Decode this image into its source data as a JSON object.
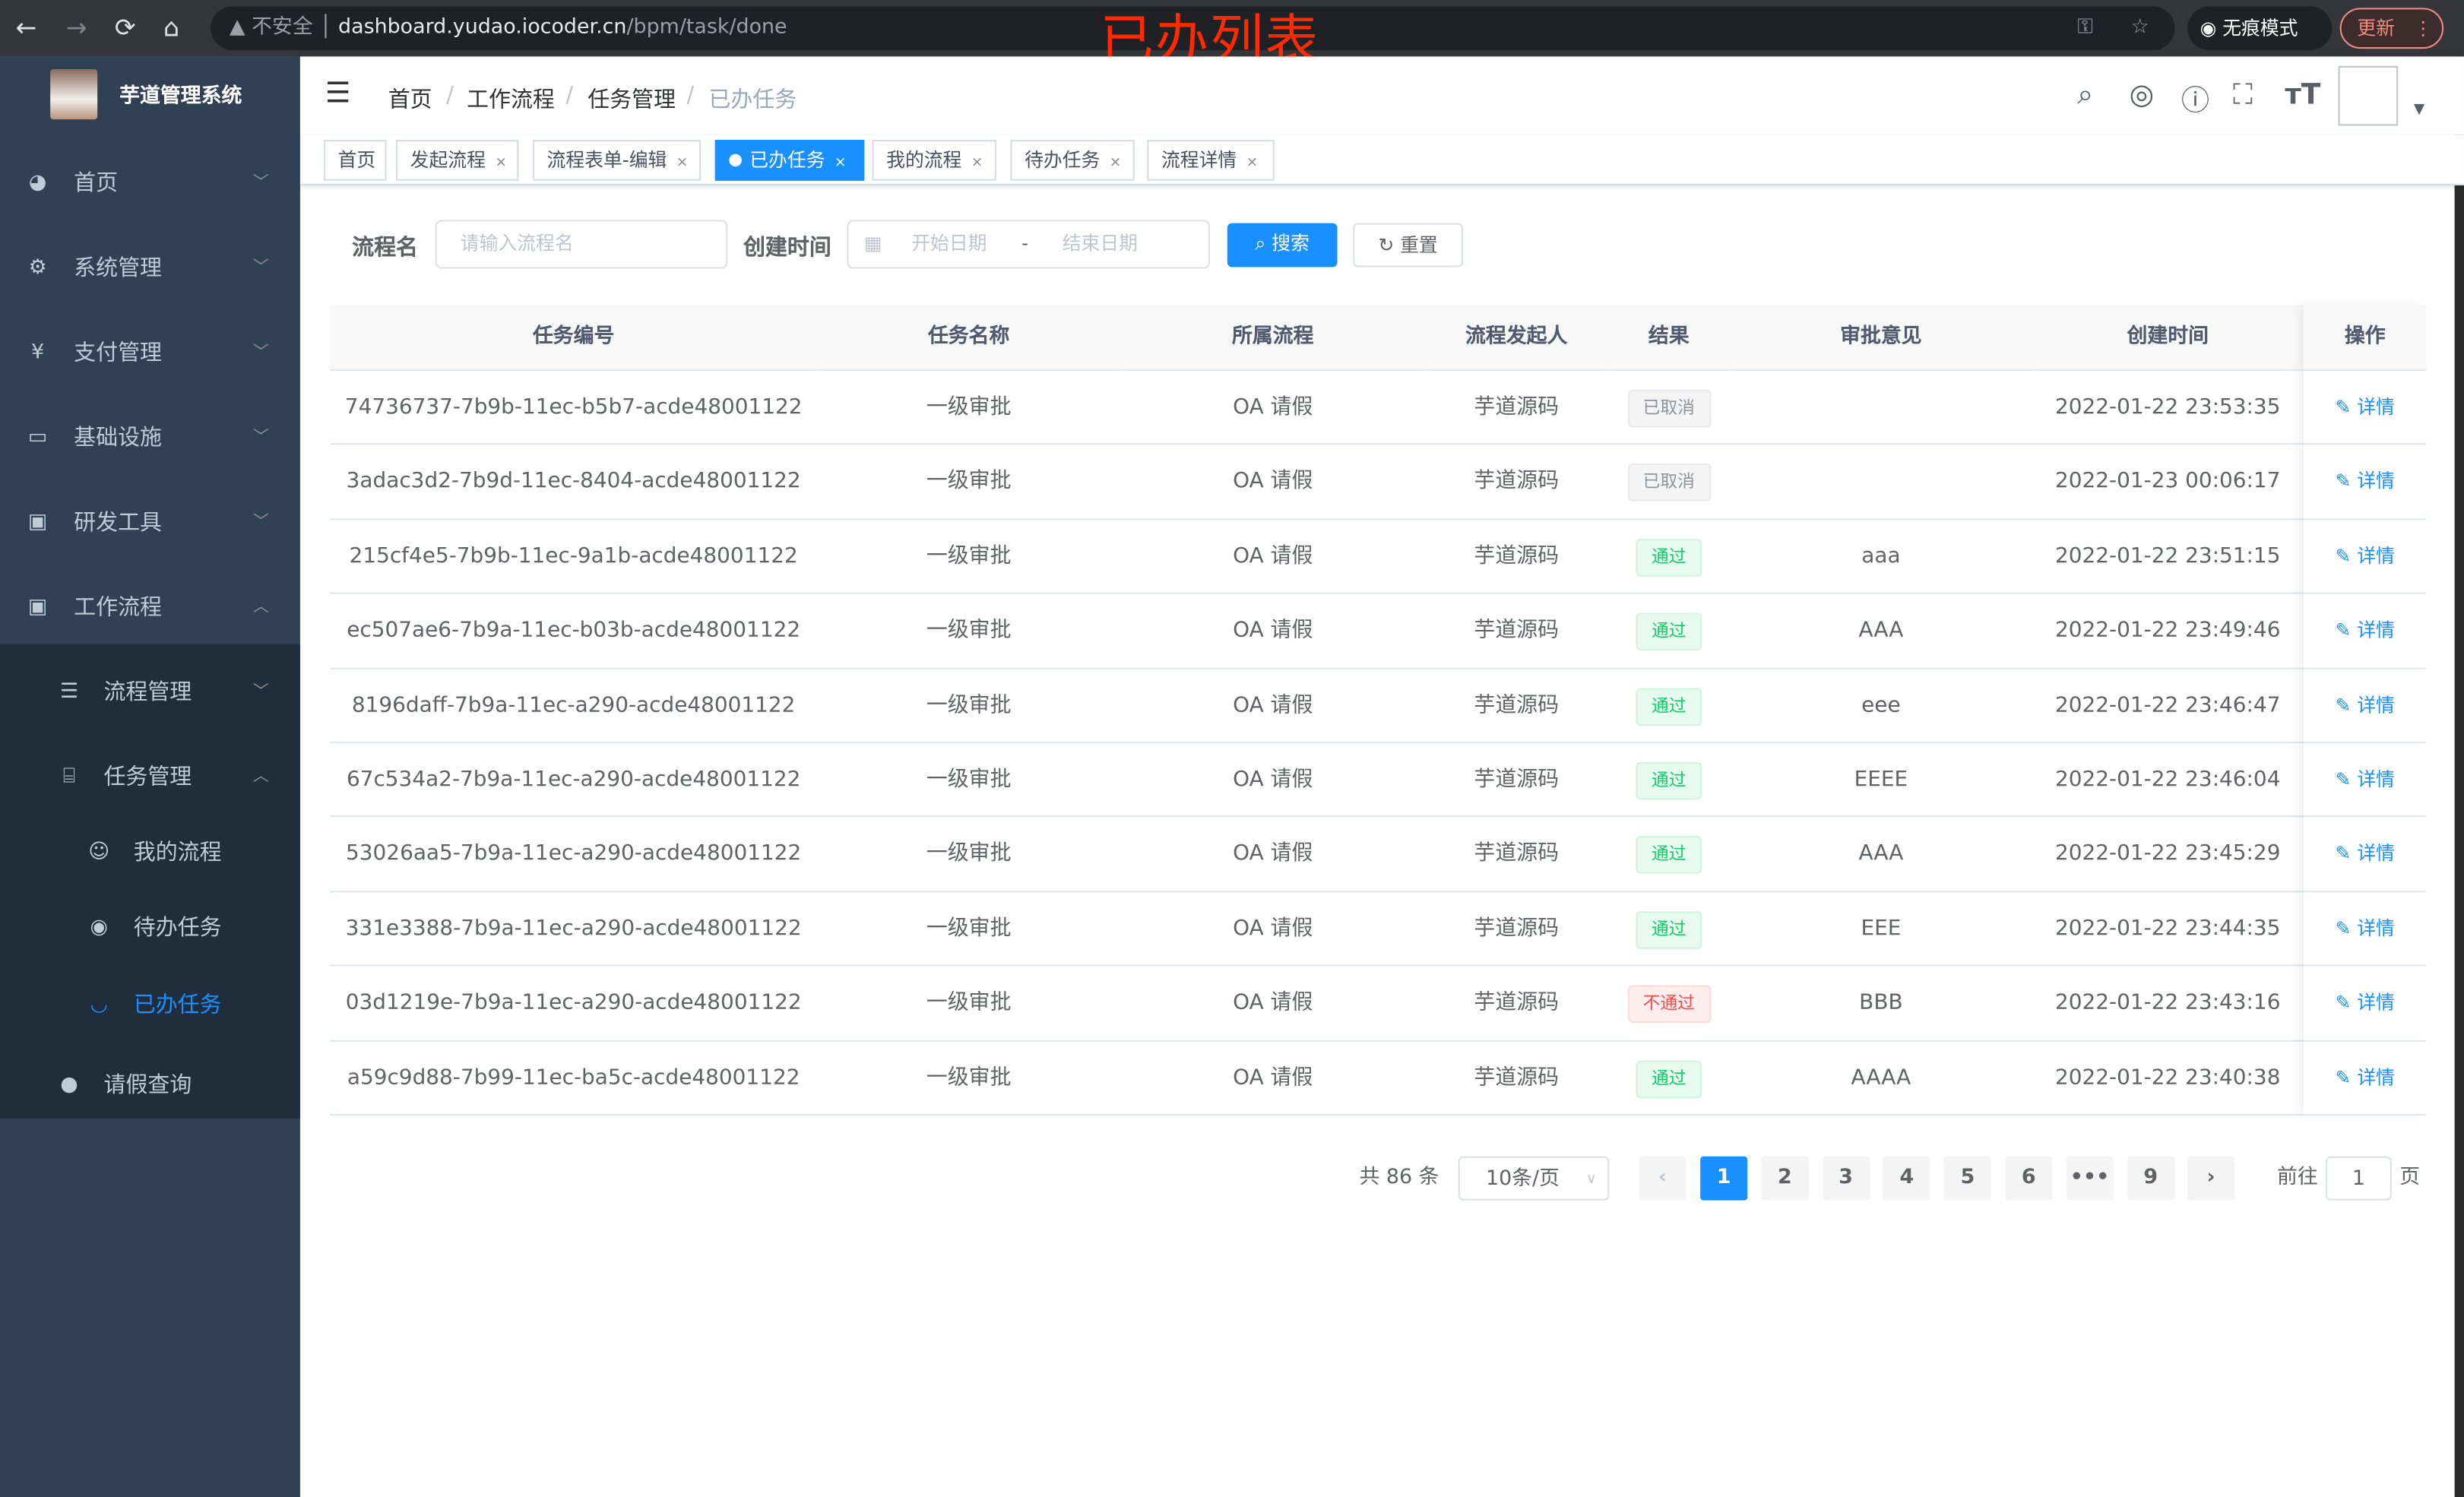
{
  "browser": {
    "back": "←",
    "forward": "→",
    "reload": "⟳",
    "home": "⌂",
    "security": "不安全",
    "url_host": "dashboard.yudao.iocoder.cn",
    "url_path": "/bpm/task/done",
    "incognito": "无痕模式",
    "update": "更新"
  },
  "overlay_title": "已办列表",
  "sidebar": {
    "title": "芋道管理系统",
    "items": [
      {
        "label": "首页",
        "icon": "dashboard-icon"
      },
      {
        "label": "系统管理",
        "icon": "gear-icon"
      },
      {
        "label": "支付管理",
        "icon": "yen-icon"
      },
      {
        "label": "基础设施",
        "icon": "monitor-icon"
      },
      {
        "label": "研发工具",
        "icon": "toolbox-icon"
      },
      {
        "label": "工作流程",
        "icon": "toolbox-icon"
      },
      {
        "label": "流程管理",
        "icon": "list-icon"
      },
      {
        "label": "任务管理",
        "icon": "tree-icon"
      },
      {
        "label": "我的流程",
        "icon": "people-icon"
      },
      {
        "label": "待办任务",
        "icon": "eye-icon"
      },
      {
        "label": "已办任务",
        "icon": "eye-closed-icon"
      },
      {
        "label": "请假查询",
        "icon": "user-icon"
      }
    ]
  },
  "breadcrumb": [
    "首页",
    "工作流程",
    "任务管理",
    "已办任务"
  ],
  "tags": [
    {
      "label": "首页"
    },
    {
      "label": "发起流程"
    },
    {
      "label": "流程表单-编辑"
    },
    {
      "label": "已办任务"
    },
    {
      "label": "我的流程"
    },
    {
      "label": "待办任务"
    },
    {
      "label": "流程详情"
    }
  ],
  "filter": {
    "name_label": "流程名",
    "name_placeholder": "请输入流程名",
    "time_label": "创建时间",
    "start_placeholder": "开始日期",
    "sep": "-",
    "end_placeholder": "结束日期",
    "search": "搜索",
    "reset": "重置"
  },
  "table": {
    "columns": [
      "任务编号",
      "任务名称",
      "所属流程",
      "流程发起人",
      "结果",
      "审批意见",
      "创建时间",
      "操作"
    ],
    "rows": [
      {
        "id": "74736737-7b9b-11ec-b5b7-acde48001122",
        "name": "一级审批",
        "process": "OA 请假",
        "starter": "芋道源码",
        "result": "已取消",
        "result_type": "cancel",
        "comment": "",
        "time": "2022-01-22 23:53:35",
        "action": "详情"
      },
      {
        "id": "3adac3d2-7b9d-11ec-8404-acde48001122",
        "name": "一级审批",
        "process": "OA 请假",
        "starter": "芋道源码",
        "result": "已取消",
        "result_type": "cancel",
        "comment": "",
        "time": "2022-01-23 00:06:17",
        "action": "详情"
      },
      {
        "id": "215cf4e5-7b9b-11ec-9a1b-acde48001122",
        "name": "一级审批",
        "process": "OA 请假",
        "starter": "芋道源码",
        "result": "通过",
        "result_type": "pass",
        "comment": "aaa",
        "time": "2022-01-22 23:51:15",
        "action": "详情"
      },
      {
        "id": "ec507ae6-7b9a-11ec-b03b-acde48001122",
        "name": "一级审批",
        "process": "OA 请假",
        "starter": "芋道源码",
        "result": "通过",
        "result_type": "pass",
        "comment": "AAA",
        "time": "2022-01-22 23:49:46",
        "action": "详情"
      },
      {
        "id": "8196daff-7b9a-11ec-a290-acde48001122",
        "name": "一级审批",
        "process": "OA 请假",
        "starter": "芋道源码",
        "result": "通过",
        "result_type": "pass",
        "comment": "eee",
        "time": "2022-01-22 23:46:47",
        "action": "详情"
      },
      {
        "id": "67c534a2-7b9a-11ec-a290-acde48001122",
        "name": "一级审批",
        "process": "OA 请假",
        "starter": "芋道源码",
        "result": "通过",
        "result_type": "pass",
        "comment": "EEEE",
        "time": "2022-01-22 23:46:04",
        "action": "详情"
      },
      {
        "id": "53026aa5-7b9a-11ec-a290-acde48001122",
        "name": "一级审批",
        "process": "OA 请假",
        "starter": "芋道源码",
        "result": "通过",
        "result_type": "pass",
        "comment": "AAA",
        "time": "2022-01-22 23:45:29",
        "action": "详情"
      },
      {
        "id": "331e3388-7b9a-11ec-a290-acde48001122",
        "name": "一级审批",
        "process": "OA 请假",
        "starter": "芋道源码",
        "result": "通过",
        "result_type": "pass",
        "comment": "EEE",
        "time": "2022-01-22 23:44:35",
        "action": "详情"
      },
      {
        "id": "03d1219e-7b9a-11ec-a290-acde48001122",
        "name": "一级审批",
        "process": "OA 请假",
        "starter": "芋道源码",
        "result": "不通过",
        "result_type": "reject",
        "comment": "BBB",
        "time": "2022-01-22 23:43:16",
        "action": "详情"
      },
      {
        "id": "a59c9d88-7b99-11ec-ba5c-acde48001122",
        "name": "一级审批",
        "process": "OA 请假",
        "starter": "芋道源码",
        "result": "通过",
        "result_type": "pass",
        "comment": "AAAA",
        "time": "2022-01-22 23:40:38",
        "action": "详情"
      }
    ]
  },
  "pagination": {
    "total": "共 86 条",
    "page_size": "10条/页",
    "pages": [
      "1",
      "2",
      "3",
      "4",
      "5",
      "6",
      "•••",
      "9"
    ],
    "current": "1",
    "goto_label": "前往",
    "goto_value": "1",
    "page_suffix": "页"
  },
  "colors": {
    "sidebar": "#304156",
    "submenu": "#1f2d3d",
    "accent": "#1890ff",
    "pass": "#13ce66",
    "reject": "#ff4949"
  }
}
